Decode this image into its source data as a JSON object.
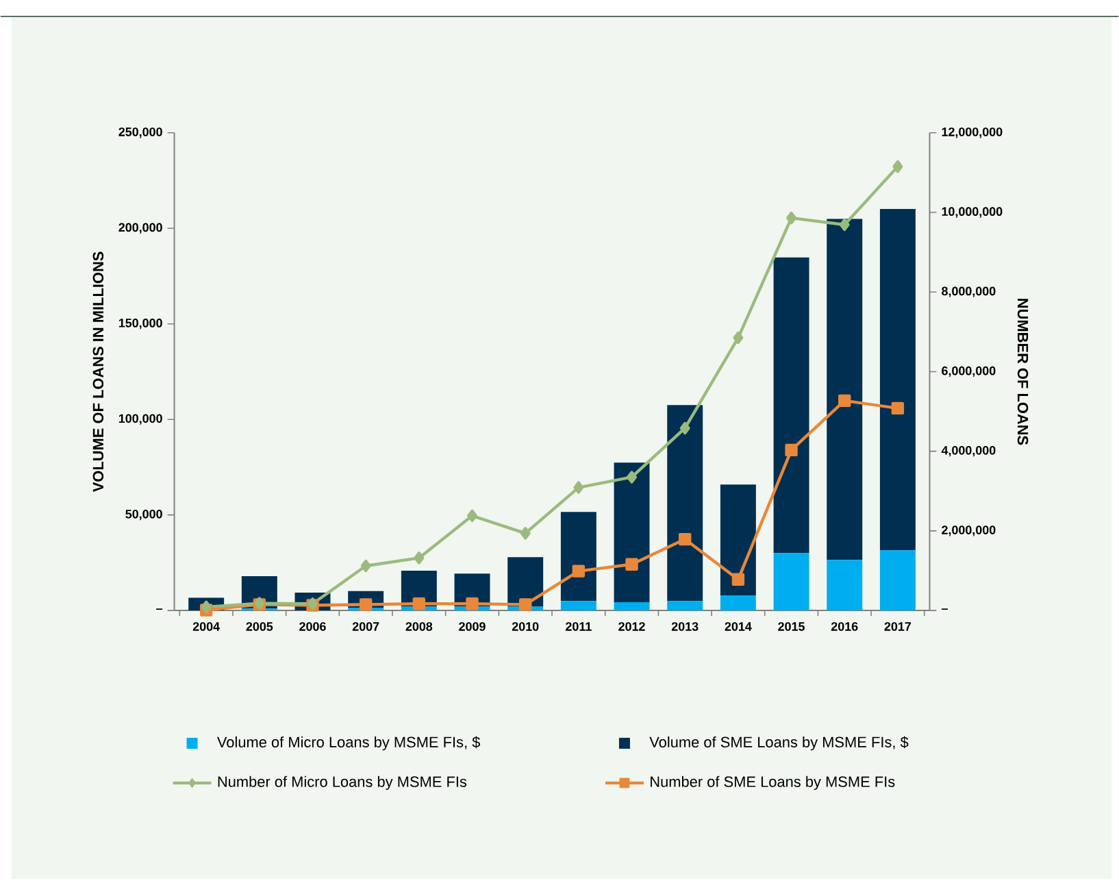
{
  "chart_data": {
    "type": "bar",
    "stacked": true,
    "legend": "bottom",
    "categories": [
      "2004",
      "2005",
      "2006",
      "2007",
      "2008",
      "2009",
      "2010",
      "2011",
      "2012",
      "2013",
      "2014",
      "2015",
      "2016",
      "2017"
    ],
    "ylabel": "VOLUME OF LOANS IN MILLIONS",
    "y2label": "NUMBER OF LOANS",
    "ylim": [
      0,
      250000
    ],
    "yticks": [
      {
        "value": 0,
        "label": "–"
      },
      {
        "value": 50000,
        "label": "50,000"
      },
      {
        "value": 100000,
        "label": "100,000"
      },
      {
        "value": 150000,
        "label": "150,000"
      },
      {
        "value": 200000,
        "label": "200,000"
      },
      {
        "value": 250000,
        "label": "250,000"
      }
    ],
    "y2lim": [
      0,
      12000000
    ],
    "y2ticks": [
      {
        "value": 0,
        "label": "–"
      },
      {
        "value": 2000000,
        "label": "2,000,000"
      },
      {
        "value": 4000000,
        "label": "4,000,000"
      },
      {
        "value": 6000000,
        "label": "6,000,000"
      },
      {
        "value": 8000000,
        "label": "8,000,000"
      },
      {
        "value": 10000000,
        "label": "10,000,000"
      },
      {
        "value": 12000000,
        "label": "12,000,000"
      }
    ],
    "series": [
      {
        "name": "Volume of Micro Loans by MSME FIs, $",
        "type": "bar",
        "color": "#00aeef",
        "values": [
          null,
          1000,
          null,
          1500,
          2000,
          2000,
          2000,
          5000,
          4300,
          5000,
          7900,
          30100,
          26500,
          31500
        ]
      },
      {
        "name": "Volume of SME Loans by MSME FIs, $",
        "type": "bar",
        "color": "#002f52",
        "values": [
          6700,
          17000,
          9400,
          8700,
          18800,
          17300,
          25900,
          46600,
          73100,
          102500,
          58000,
          154700,
          178400,
          178600
        ]
      },
      {
        "name": "Number of Micro Loans by MSME FIs",
        "type": "line",
        "axis": "y2",
        "marker": "diamond",
        "color": "#9bbb7e",
        "values": [
          90000,
          180000,
          170000,
          1120000,
          1320000,
          2380000,
          1940000,
          3090000,
          3350000,
          4580000,
          6850000,
          9860000,
          9690000,
          11150000
        ]
      },
      {
        "name": "Number of SME Loans by MSME FIs",
        "type": "line",
        "axis": "y2",
        "marker": "square",
        "color": "#e8883a",
        "values": [
          10000,
          150000,
          130000,
          150000,
          170000,
          170000,
          150000,
          990000,
          1160000,
          1790000,
          780000,
          4030000,
          5270000,
          5080000
        ]
      }
    ]
  }
}
